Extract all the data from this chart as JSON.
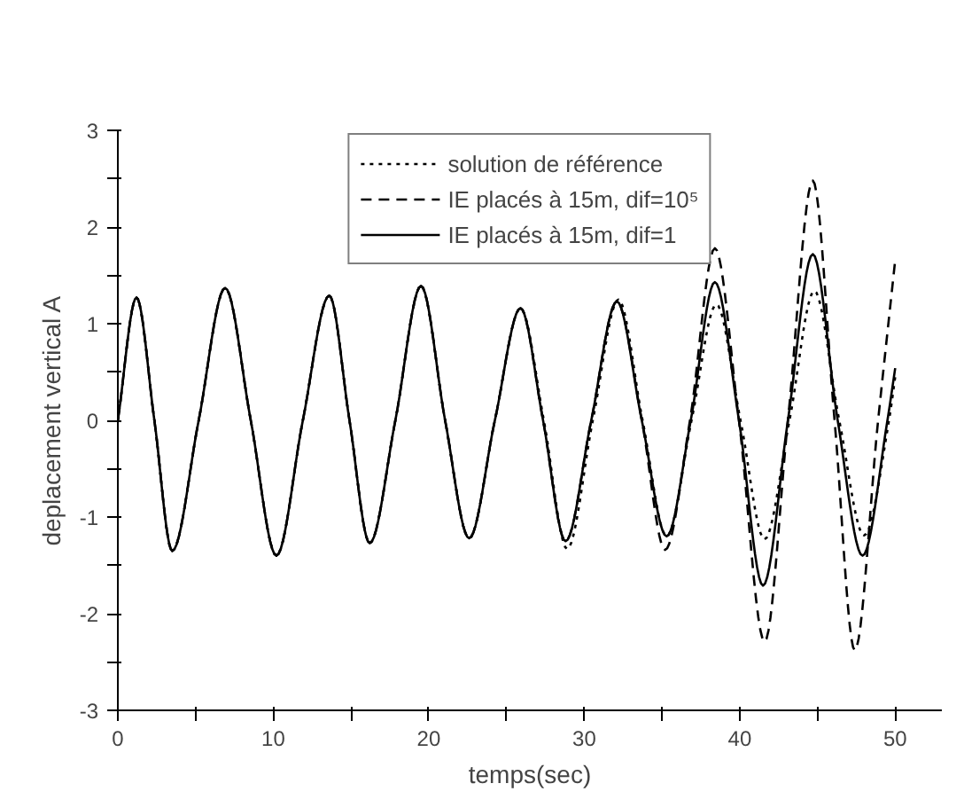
{
  "chart_data": {
    "type": "line",
    "xlabel": "temps(sec)",
    "ylabel": "deplacement vertical A",
    "xlim": [
      0,
      53
    ],
    "ylim": [
      -3,
      3
    ],
    "xticks": [
      0,
      {
        "value": 5,
        "label": null
      },
      10,
      {
        "value": 15,
        "label": null
      },
      20,
      {
        "value": 25,
        "label": null
      },
      30,
      {
        "value": 35,
        "label": null
      },
      40,
      {
        "value": 45,
        "label": null
      },
      50
    ],
    "yticks": [
      -3,
      {
        "value": -2.5,
        "label": null
      },
      -2,
      {
        "value": -1.5,
        "label": null
      },
      -1,
      {
        "value": -0.5,
        "label": null
      },
      0,
      {
        "value": 0.5,
        "label": null
      },
      1,
      {
        "value": 1.5,
        "label": null
      },
      2,
      {
        "value": 2.5,
        "label": null
      },
      3
    ],
    "grid": false,
    "legend": "top",
    "marker": "none",
    "series": [
      {
        "name": "solution de référence",
        "color": "#000000",
        "line_style": "dotted",
        "x": [
          0,
          1.2,
          2.35,
          3.5,
          5.2,
          6.9,
          8.55,
          10.2,
          11.9,
          13.6,
          14.9,
          16.2,
          17.85,
          19.5,
          21.05,
          22.6,
          24.25,
          25.9,
          27.4,
          28.9,
          30.55,
          32.2,
          33.75,
          35.3,
          36.9,
          38.5,
          40.05,
          41.6,
          43.2,
          44.8,
          46.4,
          48.0,
          49.6,
          50
        ],
        "values": [
          0,
          1.27,
          0,
          -1.35,
          0,
          1.37,
          0,
          -1.4,
          0,
          1.29,
          0,
          -1.27,
          0,
          1.39,
          0,
          -1.22,
          0,
          1.16,
          0,
          -1.33,
          0,
          1.25,
          0,
          -1.2,
          0,
          1.2,
          0,
          -1.23,
          0,
          1.34,
          0,
          -1.19,
          0,
          0.45
        ]
      },
      {
        "name": "IE placés à 15m, dif=10⁵",
        "color": "#000000",
        "line_style": "dashed",
        "x": [
          0,
          1.2,
          2.35,
          3.5,
          5.2,
          6.9,
          8.55,
          10.2,
          11.9,
          13.6,
          14.9,
          16.2,
          17.85,
          19.5,
          21.05,
          22.6,
          24.25,
          25.9,
          27.35,
          28.8,
          30.45,
          32.1,
          33.7,
          35.2,
          36.8,
          38.4,
          39.95,
          41.6,
          43.1,
          44.7,
          46.1,
          47.4,
          48.9,
          50
        ],
        "values": [
          0,
          1.27,
          0,
          -1.35,
          0,
          1.37,
          0,
          -1.4,
          0,
          1.29,
          0,
          -1.27,
          0,
          1.39,
          0,
          -1.22,
          0,
          1.16,
          0,
          -1.25,
          0,
          1.23,
          0,
          -1.34,
          0,
          1.78,
          0,
          -2.29,
          0,
          2.48,
          0,
          -2.38,
          0,
          1.66
        ]
      },
      {
        "name": "IE placés à 15m, dif=1",
        "color": "#000000",
        "line_style": "solid",
        "x": [
          0,
          1.2,
          2.35,
          3.5,
          5.2,
          6.9,
          8.55,
          10.2,
          11.9,
          13.6,
          14.9,
          16.2,
          17.85,
          19.5,
          21.05,
          22.6,
          24.25,
          25.9,
          27.35,
          28.8,
          30.45,
          32.1,
          33.7,
          35.3,
          36.85,
          38.4,
          39.95,
          41.5,
          43.1,
          44.7,
          46.3,
          47.9,
          49.5,
          50
        ],
        "values": [
          0,
          1.27,
          0,
          -1.35,
          0,
          1.37,
          0,
          -1.4,
          0,
          1.29,
          0,
          -1.27,
          0,
          1.39,
          0,
          -1.22,
          0,
          1.16,
          0,
          -1.25,
          0,
          1.23,
          0,
          -1.2,
          0,
          1.43,
          0,
          -1.71,
          0,
          1.72,
          0,
          -1.4,
          0,
          0.54
        ]
      }
    ]
  }
}
